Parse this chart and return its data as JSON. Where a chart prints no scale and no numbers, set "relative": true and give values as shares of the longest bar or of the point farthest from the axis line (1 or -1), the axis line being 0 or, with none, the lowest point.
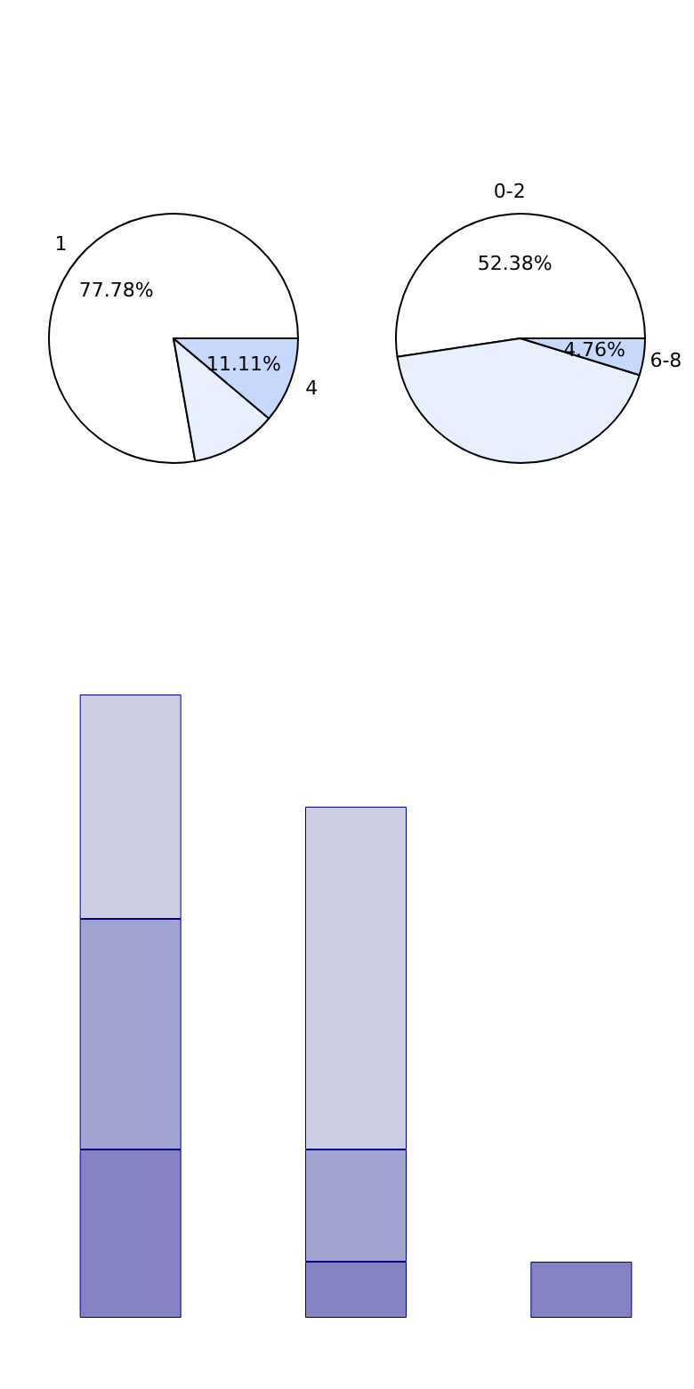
{
  "chart_data": [
    {
      "type": "pie",
      "categories": [
        "1",
        null,
        "4"
      ],
      "values": [
        77.78,
        11.11,
        11.11
      ],
      "colors": [
        "#ffffff",
        "#e8f0fd",
        "#c6d9fd"
      ],
      "value_labels": [
        "77.78%",
        null,
        "11.11%"
      ]
    },
    {
      "type": "pie",
      "categories": [
        "0-2",
        null,
        "6-8"
      ],
      "values": [
        52.38,
        42.86,
        4.76
      ],
      "colors": [
        "#ffffff",
        "#e8f0fd",
        "#c6d9fd"
      ],
      "value_labels": [
        "52.38%",
        null,
        "4.76%"
      ]
    },
    {
      "type": "bar",
      "relative": true,
      "stacked": true,
      "categories": [
        null,
        null,
        null
      ],
      "series": [
        {
          "color": "#8482c2",
          "values": [
            0.27,
            0.09,
            0.09
          ]
        },
        {
          "color": "#a2a4d2",
          "values": [
            0.37,
            0.18,
            0
          ]
        },
        {
          "color": "#cccde4",
          "values": [
            0.36,
            0.55,
            0
          ]
        }
      ]
    }
  ]
}
